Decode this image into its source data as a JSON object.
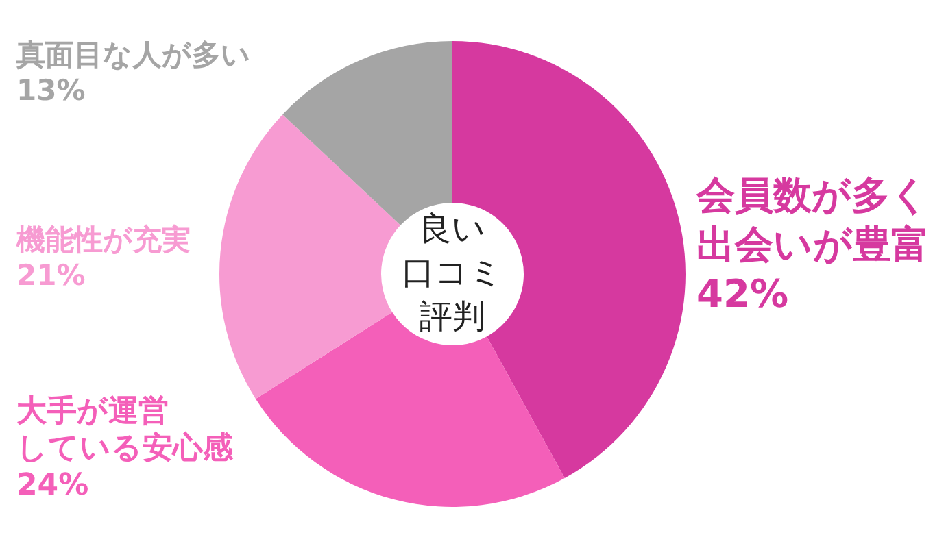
{
  "chart_data": {
    "type": "donut",
    "title": "良い口コミ評判",
    "categories": [
      "会員数が多く出会いが豊富",
      "大手が運営している安心感",
      "機能性が充実",
      "真面目な人が多い"
    ],
    "values": [
      42,
      24,
      21,
      13
    ],
    "colors": [
      "#d6399f",
      "#f45fb9",
      "#f79bd2",
      "#a5a5a5"
    ],
    "value_labels": [
      "42%",
      "24%",
      "21%",
      "13%"
    ],
    "data_labels": true
  }
}
